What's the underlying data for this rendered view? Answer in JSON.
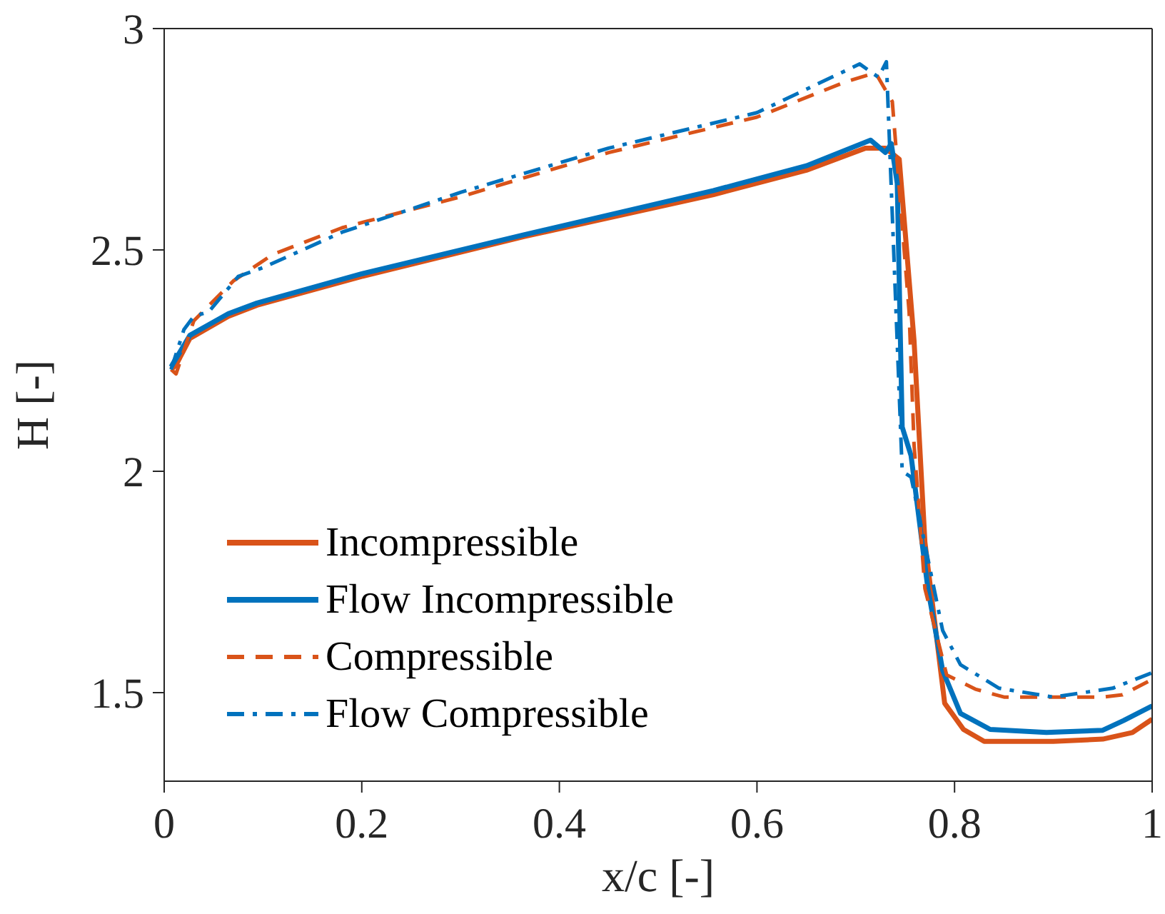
{
  "chart_data": {
    "type": "line",
    "xlabel": "x/c [-]",
    "ylabel": "H [-]",
    "xlim": [
      0,
      1
    ],
    "xticks": [
      0,
      0.2,
      0.4,
      0.6,
      0.8,
      1
    ],
    "ylim": [
      1.3,
      3
    ],
    "yticks": [
      1.5,
      2,
      2.5,
      3
    ],
    "legend": "bottom left",
    "marker": "none",
    "series": [
      {
        "name": "Incompressible",
        "color": "#d95319",
        "line_style": "solid",
        "x": [
          0.007,
          0.012,
          0.026,
          0.065,
          0.094,
          0.2,
          0.364,
          0.556,
          0.65,
          0.71,
          0.73,
          0.744,
          0.759,
          0.77,
          0.79,
          0.809,
          0.83,
          0.9,
          0.95,
          0.98,
          1.0
        ],
        "values": [
          2.23,
          2.24,
          2.3,
          2.35,
          2.375,
          2.44,
          2.53,
          2.625,
          2.68,
          2.73,
          2.73,
          2.705,
          2.295,
          1.84,
          1.476,
          1.417,
          1.39,
          1.39,
          1.395,
          1.41,
          1.44
        ]
      },
      {
        "name": "Flow Incompressible",
        "color": "#0072bd",
        "line_style": "solid",
        "x": [
          0.007,
          0.026,
          0.065,
          0.094,
          0.2,
          0.364,
          0.556,
          0.65,
          0.715,
          0.73,
          0.736,
          0.742,
          0.747,
          0.756,
          0.773,
          0.788,
          0.806,
          0.836,
          0.893,
          0.95,
          0.971,
          1.0
        ],
        "values": [
          2.236,
          2.307,
          2.356,
          2.38,
          2.446,
          2.534,
          2.634,
          2.69,
          2.748,
          2.72,
          2.74,
          2.65,
          2.1,
          2.035,
          1.735,
          1.55,
          1.453,
          1.417,
          1.41,
          1.415,
          1.437,
          1.47
        ]
      },
      {
        "name": "Compressible",
        "color": "#d95319",
        "line_style": "dashed",
        "x": [
          0.007,
          0.012,
          0.03,
          0.07,
          0.11,
          0.18,
          0.3,
          0.45,
          0.6,
          0.69,
          0.72,
          0.737,
          0.754,
          0.759,
          0.77,
          0.792,
          0.821,
          0.85,
          0.95,
          0.97,
          1.0
        ],
        "values": [
          2.23,
          2.22,
          2.34,
          2.43,
          2.49,
          2.55,
          2.62,
          2.72,
          2.8,
          2.88,
          2.9,
          2.835,
          2.36,
          2.06,
          1.735,
          1.54,
          1.508,
          1.49,
          1.49,
          1.495,
          1.53
        ]
      },
      {
        "name": "Flow Compressible",
        "color": "#0072bd",
        "line_style": "dashdot",
        "x": [
          0.007,
          0.02,
          0.03,
          0.045,
          0.075,
          0.1,
          0.18,
          0.3,
          0.45,
          0.6,
          0.704,
          0.723,
          0.731,
          0.747,
          0.756,
          0.788,
          0.806,
          0.845,
          0.9,
          0.96,
          1.0
        ],
        "values": [
          2.23,
          2.32,
          2.35,
          2.36,
          2.44,
          2.46,
          2.54,
          2.63,
          2.73,
          2.81,
          2.92,
          2.89,
          2.925,
          2.0,
          1.987,
          1.64,
          1.563,
          1.51,
          1.49,
          1.51,
          1.545
        ]
      }
    ]
  }
}
